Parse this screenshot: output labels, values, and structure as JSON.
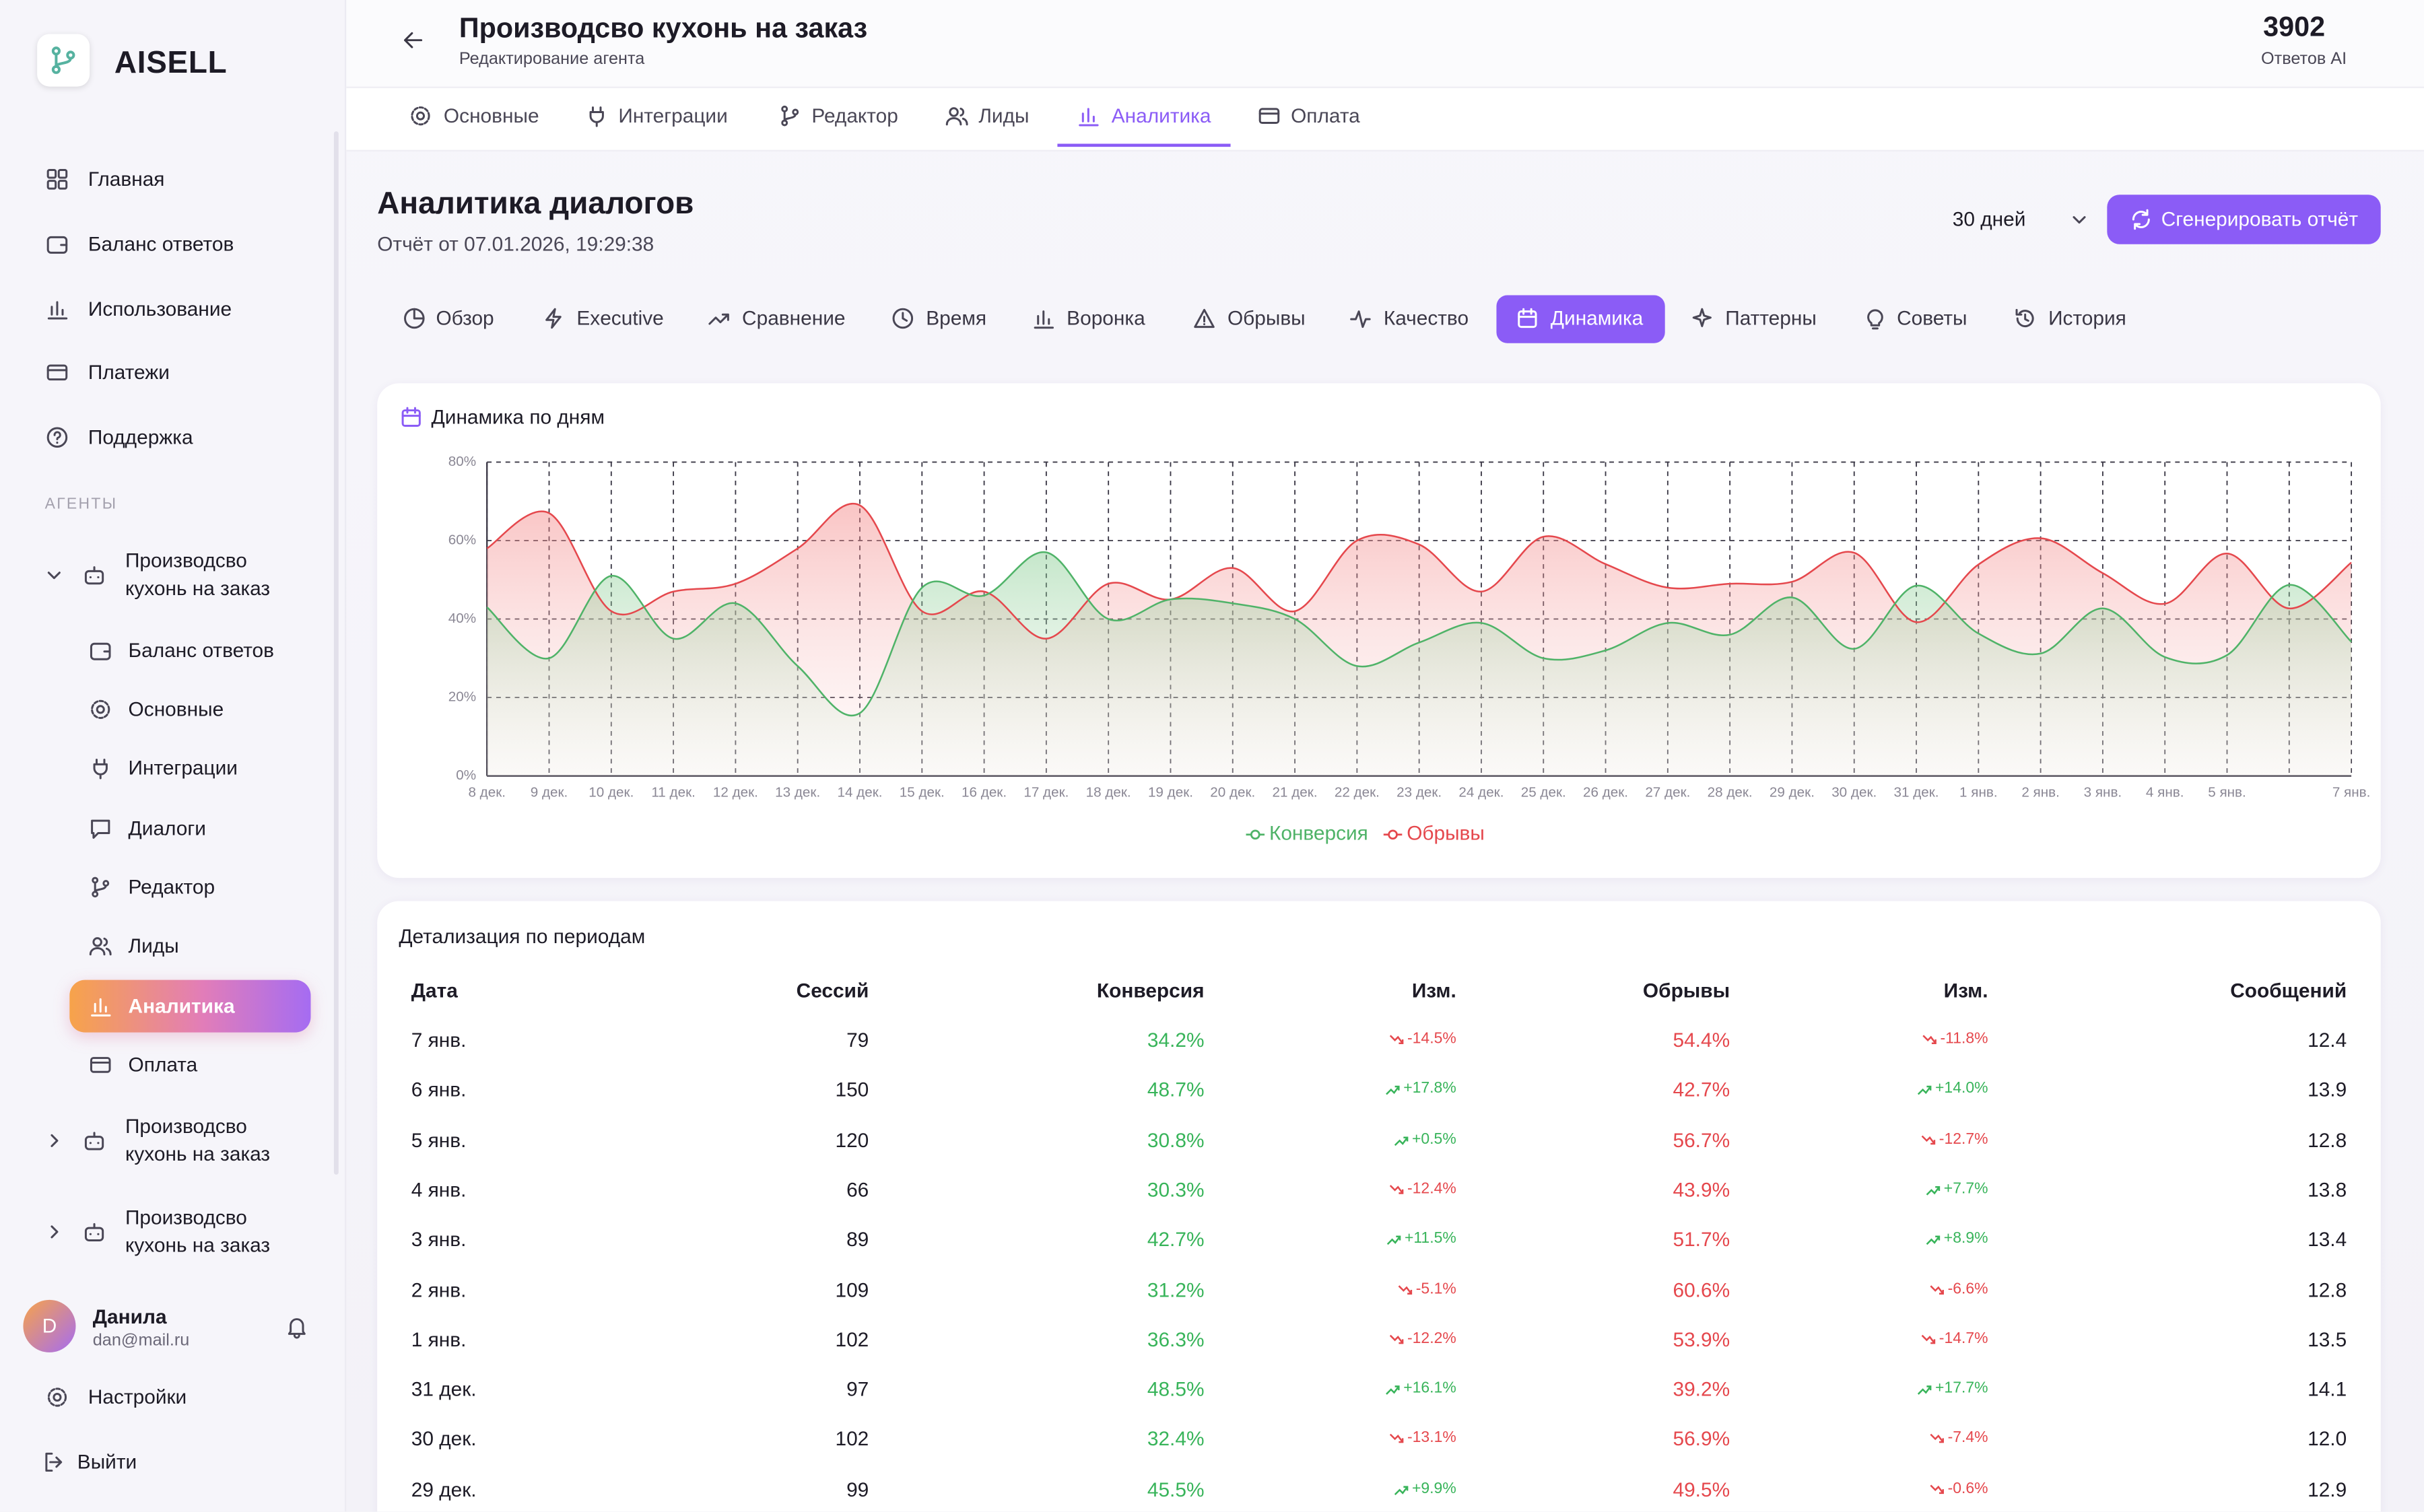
{
  "sidebar": {
    "brand": "AISELL",
    "nav": [
      "Главная",
      "Баланс ответов",
      "Использование",
      "Платежи",
      "Поддержка"
    ],
    "section_label": "АГЕНТЫ",
    "agents": [
      {
        "name": "Производсво кухонь на заказ",
        "items": [
          "Баланс ответов",
          "Основные",
          "Интеграции",
          "Диалоги",
          "Редактор",
          "Лиды",
          "Аналитика",
          "Оплата"
        ]
      },
      {
        "name": "Производсво кухонь на заказ"
      },
      {
        "name": "Производсво кухонь на заказ"
      }
    ],
    "user": {
      "avatar": "D",
      "name": "Данила",
      "email": "dan@mail.ru"
    },
    "settings": "Настройки",
    "logout": "Выйти"
  },
  "header": {
    "title": "Производсво кухонь на заказ",
    "subtitle": "Редактирование агента",
    "counter": "3902",
    "counter_label": "Ответов AI"
  },
  "agent_tabs": [
    "Основные",
    "Интеграции",
    "Редактор",
    "Лиды",
    "Аналитика",
    "Оплата"
  ],
  "page": {
    "title": "Аналитика диалогов",
    "report_date": "Отчёт от 07.01.2026, 19:29:38",
    "period": "30 дней",
    "generate_button": "Сгенерировать отчёт"
  },
  "analytics_tabs": [
    "Обзор",
    "Executive",
    "Сравнение",
    "Время",
    "Воронка",
    "Обрывы",
    "Качество",
    "Динамика",
    "Паттерны",
    "Советы",
    "История"
  ],
  "chart_data": {
    "type": "line",
    "title": "Динамика по дням",
    "categories": [
      "8 дек.",
      "9 дек.",
      "10 дек.",
      "11 дек.",
      "12 дек.",
      "13 дек.",
      "14 дек.",
      "15 дек.",
      "16 дек.",
      "17 дек.",
      "18 дек.",
      "19 дек.",
      "20 дек.",
      "21 дек.",
      "22 дек.",
      "23 дек.",
      "24 дек.",
      "25 дек.",
      "26 дек.",
      "27 дек.",
      "28 дек.",
      "29 дек.",
      "30 дек.",
      "31 дек.",
      "1 янв.",
      "2 янв.",
      "3 янв.",
      "4 янв.",
      "5 янв.",
      null,
      "7 янв."
    ],
    "series": [
      {
        "name": "Конверсия",
        "color": "#4fb368",
        "values": [
          43,
          30,
          51,
          35,
          44,
          28,
          16,
          48,
          46,
          57,
          40,
          45,
          44,
          40,
          28,
          34,
          39,
          30,
          32,
          39,
          36,
          45.5,
          32.4,
          48.5,
          36.3,
          31.2,
          42.7,
          30.3,
          30.8,
          48.7,
          34.2
        ]
      },
      {
        "name": "Обрывы",
        "color": "#e5484d",
        "values": [
          58,
          67,
          42,
          47,
          49,
          58,
          69,
          42,
          47,
          35,
          49,
          45,
          53,
          42,
          60,
          59,
          47,
          61,
          54,
          48,
          49,
          49.5,
          56.9,
          39.2,
          53.9,
          60.6,
          51.7,
          43.9,
          56.7,
          42.7,
          54.4
        ]
      }
    ],
    "ylim": [
      0,
      80
    ],
    "yticks": [
      {
        "value": 0,
        "label": "0%"
      },
      {
        "value": 20,
        "label": "20%"
      },
      {
        "value": 40,
        "label": "40%"
      },
      {
        "value": 60,
        "label": "60%"
      },
      {
        "value": 80,
        "label": "80%"
      }
    ],
    "grid": true,
    "legend": "bottom"
  },
  "table": {
    "title": "Детализация по периодам",
    "columns": [
      "Дата",
      "Сессий",
      "Конверсия",
      "Изм.",
      "Обрывы",
      "Изм.",
      "Сообщений"
    ],
    "rows": [
      [
        "7 янв.",
        "79",
        "34.2%",
        "-14.5%",
        "54.4%",
        "-11.8%",
        "12.4"
      ],
      [
        "6 янв.",
        "150",
        "48.7%",
        "+17.8%",
        "42.7%",
        "+14.0%",
        "13.9"
      ],
      [
        "5 янв.",
        "120",
        "30.8%",
        "+0.5%",
        "56.7%",
        "-12.7%",
        "12.8"
      ],
      [
        "4 янв.",
        "66",
        "30.3%",
        "-12.4%",
        "43.9%",
        "+7.7%",
        "13.8"
      ],
      [
        "3 янв.",
        "89",
        "42.7%",
        "+11.5%",
        "51.7%",
        "+8.9%",
        "13.4"
      ],
      [
        "2 янв.",
        "109",
        "31.2%",
        "-5.1%",
        "60.6%",
        "-6.6%",
        "12.8"
      ],
      [
        "1 янв.",
        "102",
        "36.3%",
        "-12.2%",
        "53.9%",
        "-14.7%",
        "13.5"
      ],
      [
        "31 дек.",
        "97",
        "48.5%",
        "+16.1%",
        "39.2%",
        "+17.7%",
        "14.1"
      ],
      [
        "30 дек.",
        "102",
        "32.4%",
        "-13.1%",
        "56.9%",
        "-7.4%",
        "12.0"
      ],
      [
        "29 дек.",
        "99",
        "45.5%",
        "+9.9%",
        "49.5%",
        "-0.6%",
        "12.9"
      ]
    ]
  }
}
